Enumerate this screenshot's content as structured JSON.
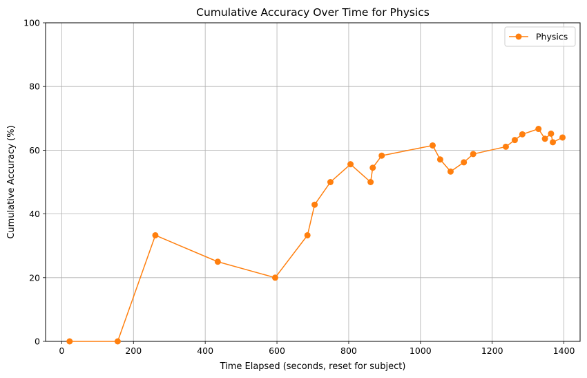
{
  "chart_data": {
    "type": "line",
    "title": "Cumulative Accuracy Over Time for Physics",
    "xlabel": "Time Elapsed (seconds, reset for subject)",
    "ylabel": "Cumulative Accuracy (%)",
    "xlim": [
      -45,
      1445
    ],
    "ylim": [
      0,
      100
    ],
    "xticks": [
      0,
      200,
      400,
      600,
      800,
      1000,
      1200,
      1400
    ],
    "yticks": [
      0,
      20,
      40,
      60,
      80,
      100
    ],
    "grid": true,
    "legend_position": "top-right",
    "series": [
      {
        "name": "Physics",
        "color": "#ff7f0e",
        "marker": "circle",
        "x": [
          22,
          156,
          261,
          435,
          595,
          685,
          705,
          749,
          805,
          861,
          867,
          892,
          1034,
          1055,
          1084,
          1121,
          1147,
          1238,
          1263,
          1284,
          1329,
          1347,
          1364,
          1369,
          1396
        ],
        "y": [
          0,
          0,
          33.3,
          25.0,
          20.0,
          33.3,
          42.9,
          50.0,
          55.6,
          50.0,
          54.5,
          58.3,
          61.5,
          57.1,
          53.3,
          56.2,
          58.8,
          61.1,
          63.2,
          65.0,
          66.7,
          63.6,
          65.2,
          62.5,
          64.0
        ]
      }
    ]
  }
}
